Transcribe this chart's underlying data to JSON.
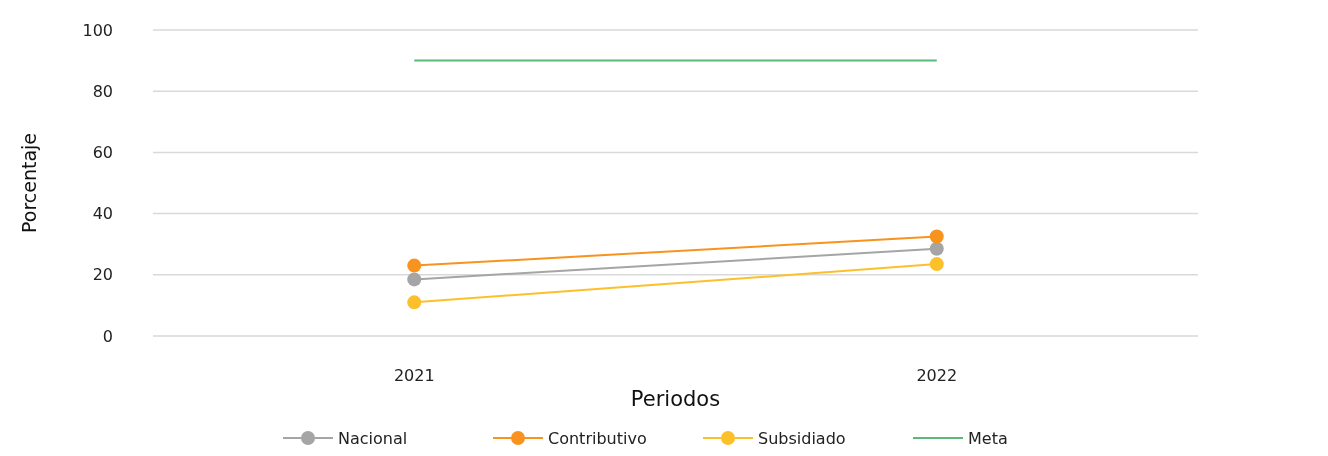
{
  "chart_data": {
    "type": "line",
    "xlabel": "Periodos",
    "ylabel": "Porcentaje",
    "categories": [
      "2021",
      "2022"
    ],
    "ylim": [
      0,
      100
    ],
    "yticks": [
      0,
      20,
      40,
      60,
      80,
      100
    ],
    "grid": "y",
    "legend": "bottom",
    "marker": "circle",
    "series": [
      {
        "name": "Nacional",
        "color": "#a5a5a5",
        "values": [
          18.5,
          28.5
        ]
      },
      {
        "name": "Contributivo",
        "color": "#f7931e",
        "values": [
          23,
          32.5
        ]
      },
      {
        "name": "Subsidiado",
        "color": "#fcc02a",
        "values": [
          11,
          23.5
        ]
      },
      {
        "name": "Meta",
        "color": "#5bb97b",
        "values": [
          90,
          90
        ],
        "marker": "none"
      }
    ]
  }
}
